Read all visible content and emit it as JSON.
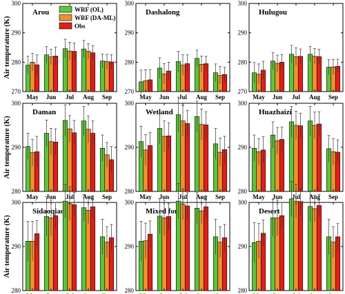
{
  "colors": {
    "WRF (OL)": "#5fc43b",
    "WRF (DA-ML)": "#f0912e",
    "Obs": "#e0201b"
  },
  "ylabel": "Air temperature (K)",
  "legend": [
    "WRF (OL)",
    "WRF (DA-ML)",
    "Obs"
  ],
  "chart_data": [
    {
      "type": "bar",
      "title": "Arou",
      "categories": [
        "May",
        "Jun",
        "Jul",
        "Aug",
        "Sep"
      ],
      "ylim": [
        270,
        300
      ],
      "yticks": [
        270,
        280,
        290,
        300
      ],
      "series": [
        {
          "name": "WRF (OL)",
          "values": [
            279.0,
            282.5,
            284.6,
            284.5,
            280.4
          ],
          "err": [
            3.0,
            2.8,
            3.2,
            2.9,
            2.4
          ]
        },
        {
          "name": "WRF (DA-ML)",
          "values": [
            280.0,
            281.8,
            283.8,
            283.7,
            280.2
          ],
          "err": [
            3.0,
            2.6,
            3.0,
            2.6,
            2.5
          ]
        },
        {
          "name": "Obs",
          "values": [
            279.1,
            282.1,
            283.7,
            283.2,
            280.1
          ],
          "err": [
            3.4,
            3.0,
            2.8,
            2.5,
            2.5
          ]
        }
      ]
    },
    {
      "type": "bar",
      "title": "Dashalong",
      "categories": [
        "May",
        "Jun",
        "Jul",
        "Aug",
        "Sep"
      ],
      "ylim": [
        270,
        300
      ],
      "yticks": [
        270,
        280,
        290,
        300
      ],
      "series": [
        {
          "name": "WRF (OL)",
          "values": [
            273.3,
            278.0,
            280.2,
            281.3,
            276.4
          ],
          "err": [
            4.0,
            3.5,
            3.5,
            2.8,
            3.0
          ]
        },
        {
          "name": "WRF (DA-ML)",
          "values": [
            273.7,
            276.0,
            279.0,
            279.3,
            275.5
          ],
          "err": [
            3.7,
            3.5,
            3.5,
            2.8,
            3.0
          ]
        },
        {
          "name": "Obs",
          "values": [
            274.0,
            277.0,
            279.5,
            279.5,
            275.8
          ],
          "err": [
            3.5,
            3.0,
            3.0,
            2.5,
            2.5
          ]
        }
      ]
    },
    {
      "type": "bar",
      "title": "Hulugou",
      "categories": [
        "May",
        "Jun",
        "Jul",
        "Aug",
        "Sep"
      ],
      "ylim": [
        270,
        300
      ],
      "yticks": [
        270,
        280,
        290,
        300
      ],
      "series": [
        {
          "name": "WRF (OL)",
          "values": [
            276.4,
            280.4,
            282.7,
            282.7,
            278.3
          ],
          "err": [
            3.5,
            2.8,
            3.0,
            2.6,
            2.6
          ]
        },
        {
          "name": "WRF (DA-ML)",
          "values": [
            275.9,
            279.6,
            281.9,
            282.0,
            278.4
          ],
          "err": [
            3.5,
            2.8,
            3.0,
            2.6,
            2.6
          ]
        },
        {
          "name": "Obs",
          "values": [
            277.3,
            280.0,
            282.0,
            281.9,
            278.6
          ],
          "err": [
            3.0,
            2.6,
            2.5,
            2.5,
            2.4
          ]
        }
      ]
    },
    {
      "type": "bar",
      "title": "Daman",
      "categories": [
        "May",
        "Jun",
        "Jul",
        "Aug",
        "Sep"
      ],
      "ylim": [
        280,
        300
      ],
      "yticks": [
        280,
        290,
        300
      ],
      "series": [
        {
          "name": "WRF (OL)",
          "values": [
            290.2,
            293.2,
            296.1,
            296.0,
            289.8
          ],
          "err": [
            3.0,
            3.0,
            3.5,
            3.3,
            3.0
          ]
        },
        {
          "name": "WRF (DA-ML)",
          "values": [
            288.8,
            291.3,
            294.2,
            294.1,
            288.3
          ],
          "err": [
            3.0,
            3.0,
            3.0,
            3.0,
            2.8
          ]
        },
        {
          "name": "Obs",
          "values": [
            289.0,
            291.2,
            293.3,
            293.2,
            287.2
          ],
          "err": [
            3.5,
            3.0,
            2.8,
            2.8,
            3.0
          ]
        }
      ]
    },
    {
      "type": "bar",
      "title": "Wetland",
      "categories": [
        "May",
        "Jun",
        "Jul",
        "Aug",
        "Sep"
      ],
      "ylim": [
        280,
        300
      ],
      "yticks": [
        280,
        290,
        300
      ],
      "series": [
        {
          "name": "WRF (OL)",
          "values": [
            291.3,
            294.3,
            297.4,
            297.0,
            290.8
          ],
          "err": [
            3.5,
            3.5,
            4.0,
            3.5,
            3.5
          ]
        },
        {
          "name": "WRF (DA-ML)",
          "values": [
            289.4,
            292.5,
            296.0,
            295.2,
            288.9
          ],
          "err": [
            3.5,
            3.5,
            3.5,
            3.5,
            3.2
          ]
        },
        {
          "name": "Obs",
          "values": [
            290.4,
            292.6,
            295.4,
            295.1,
            289.5
          ],
          "err": [
            3.0,
            3.0,
            3.0,
            3.0,
            3.0
          ]
        }
      ]
    },
    {
      "type": "bar",
      "title": "Huazhaizi",
      "categories": [
        "May",
        "Jun",
        "Jul",
        "Aug",
        "Sep"
      ],
      "ylim": [
        280,
        300
      ],
      "yticks": [
        280,
        290,
        300
      ],
      "series": [
        {
          "name": "WRF (OL)",
          "values": [
            289.8,
            292.8,
            295.8,
            296.0,
            289.7
          ],
          "err": [
            3.0,
            3.0,
            3.5,
            3.3,
            3.0
          ]
        },
        {
          "name": "WRF (DA-ML)",
          "values": [
            289.0,
            291.5,
            295.0,
            295.0,
            289.0
          ],
          "err": [
            3.0,
            3.0,
            3.2,
            3.0,
            3.0
          ]
        },
        {
          "name": "Obs",
          "values": [
            289.4,
            291.8,
            294.9,
            295.3,
            288.9
          ],
          "err": [
            3.0,
            2.8,
            2.8,
            2.8,
            2.8
          ]
        }
      ]
    },
    {
      "type": "bar",
      "title": "Sidaoqiao",
      "categories": [
        "May",
        "Jun",
        "Jul",
        "Aug",
        "Sep"
      ],
      "ylim": [
        280,
        300
      ],
      "yticks": [
        280,
        290,
        300
      ],
      "series": [
        {
          "name": "WRF (OL)",
          "values": [
            291.2,
            296.8,
            300.3,
            298.8,
            292.2
          ],
          "err": [
            4.5,
            4.5,
            3.8,
            3.0,
            4.0
          ]
        },
        {
          "name": "WRF (DA-ML)",
          "values": [
            291.2,
            296.5,
            299.7,
            298.2,
            291.0
          ],
          "err": [
            4.5,
            4.0,
            3.8,
            3.0,
            3.5
          ]
        },
        {
          "name": "Obs",
          "values": [
            292.9,
            297.0,
            299.5,
            299.0,
            292.0
          ],
          "err": [
            3.0,
            3.0,
            2.8,
            2.5,
            3.0
          ]
        }
      ]
    },
    {
      "type": "bar",
      "title": "Mixed forest",
      "categories": [
        "May",
        "Jun",
        "Jul",
        "Aug",
        "Sep"
      ],
      "ylim": [
        280,
        300
      ],
      "yticks": [
        280,
        290,
        300
      ],
      "series": [
        {
          "name": "WRF (OL)",
          "values": [
            291.2,
            296.9,
            300.3,
            298.7,
            292.2
          ],
          "err": [
            4.5,
            4.0,
            4.0,
            3.5,
            4.0
          ]
        },
        {
          "name": "WRF (DA-ML)",
          "values": [
            291.3,
            296.5,
            299.6,
            298.1,
            291.0
          ],
          "err": [
            4.0,
            4.0,
            3.5,
            3.0,
            3.5
          ]
        },
        {
          "name": "Obs",
          "values": [
            292.8,
            296.8,
            299.2,
            299.0,
            292.0
          ],
          "err": [
            3.0,
            3.0,
            3.0,
            2.5,
            3.0
          ]
        }
      ]
    },
    {
      "type": "bar",
      "title": "Desert",
      "categories": [
        "May",
        "Jun",
        "Jul",
        "Aug",
        "Sep"
      ],
      "ylim": [
        280,
        300
      ],
      "yticks": [
        280,
        290,
        300
      ],
      "series": [
        {
          "name": "WRF (OL)",
          "values": [
            290.9,
            296.5,
            300.8,
            299.1,
            292.2
          ],
          "err": [
            4.5,
            4.2,
            4.0,
            3.5,
            4.0
          ]
        },
        {
          "name": "WRF (DA-ML)",
          "values": [
            291.2,
            296.5,
            300.3,
            298.6,
            291.0
          ],
          "err": [
            4.0,
            4.0,
            3.8,
            3.0,
            3.5
          ]
        },
        {
          "name": "Obs",
          "values": [
            293.0,
            297.0,
            300.2,
            299.3,
            292.2
          ],
          "err": [
            3.0,
            3.0,
            3.0,
            2.5,
            3.0
          ]
        }
      ]
    }
  ]
}
